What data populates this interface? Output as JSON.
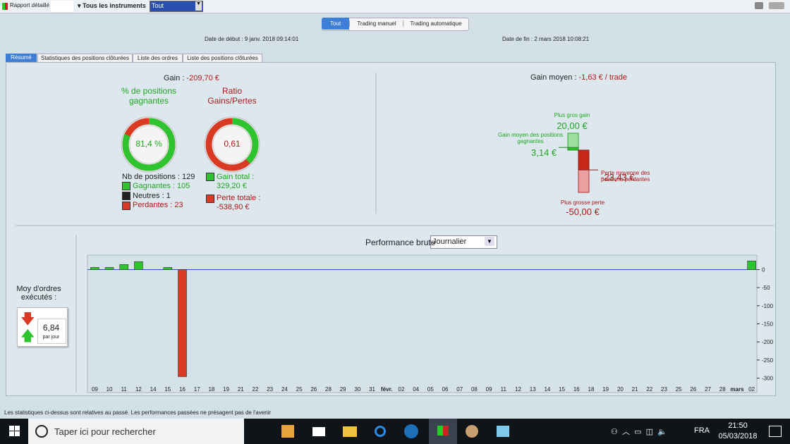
{
  "toolbar": {
    "report": "Rapport détaillé",
    "instruments": "Tous les instruments",
    "filter": "Tout"
  },
  "mode_buttons": [
    "Tout",
    "Trading manuel",
    "Trading automatique"
  ],
  "dates": {
    "start": "Date de début : 9 janv. 2018 09:14:01",
    "end": "Date de fin : 2 mars 2018 10:08:21"
  },
  "tabs": [
    "Résumé",
    "Statistiques des positions clôturées",
    "Liste des ordres",
    "Liste des positions clôturées"
  ],
  "summary": {
    "gain_label": "Gain :",
    "gain": "-209,70 €",
    "win_rate": {
      "title": "% de positions gagnantes",
      "value": 81.4,
      "label": "81,4 %"
    },
    "ratio": {
      "title": "Ratio Gains/Pertes",
      "value": 0.61,
      "label": "0,61"
    },
    "positions": "Nb de positions : 129",
    "winners": "Gagnantes : 105",
    "neutral": "Neutres : 1",
    "losers": "Perdantes : 23",
    "gain_total_label": "Gain total :",
    "gain_total": "329,20 €",
    "loss_total_label": "Perte totale :",
    "loss_total": "-538,90 €"
  },
  "average": {
    "label": "Gain moyen :",
    "value": "-1,63 € / trade",
    "max_gain_label": "Plus gros gain",
    "max_gain": {
      "value": 20,
      "label": "20,00 €"
    },
    "avg_win_label": "Gain moyen des positions gagnantes",
    "avg_win": {
      "value": 3.14,
      "label": "3,14 €"
    },
    "avg_loss_label": "Perte moyenne des positions perdantes",
    "avg_loss": {
      "value": -23.43,
      "label": "-23,43 €"
    },
    "max_loss_label": "Plus grosse perte",
    "max_loss": {
      "value": -50,
      "label": "-50,00 €"
    }
  },
  "orders": {
    "label": "Moy d'ordres exécutés :",
    "value": "6,84",
    "unit": "par jour"
  },
  "chart_data": {
    "type": "bar",
    "title": "Performance brute",
    "period": "Journalier",
    "categories": [
      "09",
      "10",
      "11",
      "12",
      "14",
      "15",
      "16",
      "17",
      "18",
      "19",
      "21",
      "22",
      "23",
      "24",
      "25",
      "26",
      "28",
      "29",
      "30",
      "31",
      "févr.",
      "02",
      "04",
      "05",
      "06",
      "07",
      "08",
      "09",
      "11",
      "12",
      "13",
      "14",
      "15",
      "16",
      "18",
      "19",
      "20",
      "21",
      "22",
      "23",
      "25",
      "26",
      "27",
      "28",
      "mars",
      "02"
    ],
    "values": [
      6,
      6,
      14,
      22,
      null,
      6,
      -296,
      null,
      null,
      null,
      null,
      null,
      null,
      null,
      null,
      null,
      null,
      null,
      null,
      null,
      null,
      null,
      null,
      null,
      null,
      null,
      null,
      null,
      null,
      null,
      null,
      null,
      null,
      null,
      null,
      null,
      null,
      null,
      null,
      null,
      null,
      null,
      null,
      null,
      null,
      24
    ],
    "color": "#2fc42f",
    "negative_color": "#d83a24",
    "ylim": [
      -340,
      40
    ],
    "yticks": [
      0,
      -50,
      -100,
      -150,
      -200,
      -250,
      -300
    ]
  },
  "footer": "Les statistiques ci-dessus sont relatives au passé. Les performances passées ne présagent pas de l'avenir",
  "taskbar": {
    "search": "Taper ici pour rechercher",
    "lang": "FRA",
    "time": "21:50",
    "date": "05/03/2018"
  }
}
